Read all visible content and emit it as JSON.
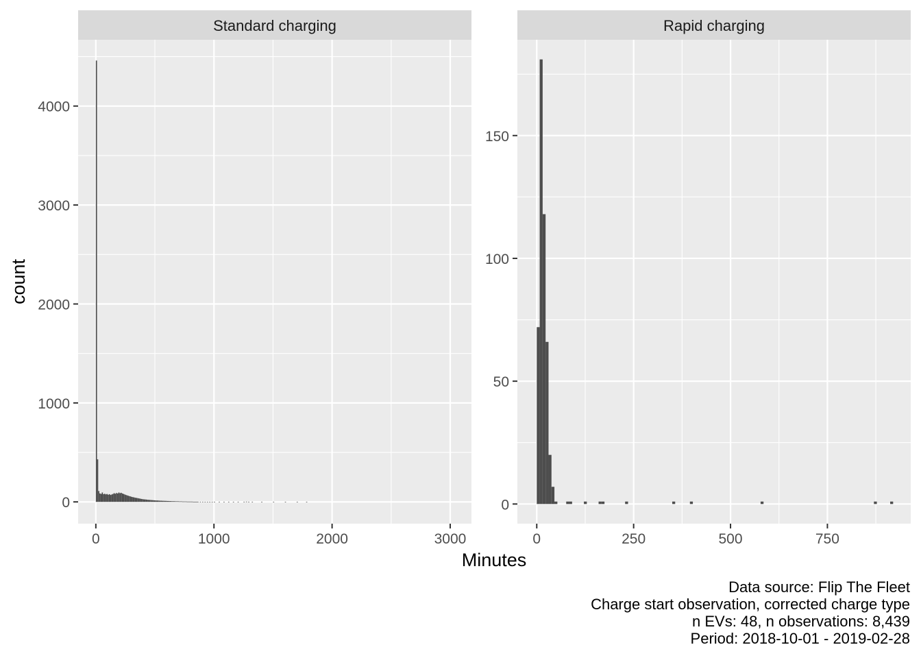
{
  "chart_data": {
    "type": "bar",
    "kind": "faceted histogram",
    "xlabel": "Minutes",
    "ylabel": "count",
    "grid": true,
    "caption": [
      "Data source: Flip The Fleet",
      "Charge start observation, corrected charge type",
      "n EVs: 48, n observations: 8,439",
      "Period: 2018-10-01 - 2019-02-28"
    ],
    "facets": [
      {
        "title": "Standard charging",
        "xlim": [
          -150,
          3180
        ],
        "ylim": [
          -220,
          4670
        ],
        "x_ticks": [
          0,
          1000,
          2000,
          3000
        ],
        "x_tick_labels": [
          "0",
          "1000",
          "2000",
          "3000"
        ],
        "y_ticks": [
          0,
          1000,
          2000,
          3000,
          4000
        ],
        "y_tick_labels": [
          "0",
          "1000",
          "2000",
          "3000",
          "4000"
        ],
        "bin_width": 10,
        "bins": [
          [
            0,
            4460
          ],
          [
            10,
            430
          ],
          [
            20,
            110
          ],
          [
            30,
            85
          ],
          [
            40,
            80
          ],
          [
            50,
            95
          ],
          [
            60,
            78
          ],
          [
            70,
            82
          ],
          [
            80,
            76
          ],
          [
            90,
            80
          ],
          [
            100,
            72
          ],
          [
            110,
            78
          ],
          [
            120,
            70
          ],
          [
            130,
            75
          ],
          [
            140,
            80
          ],
          [
            150,
            88
          ],
          [
            160,
            82
          ],
          [
            170,
            90
          ],
          [
            180,
            85
          ],
          [
            190,
            95
          ],
          [
            200,
            88
          ],
          [
            210,
            92
          ],
          [
            220,
            85
          ],
          [
            230,
            80
          ],
          [
            240,
            75
          ],
          [
            250,
            70
          ],
          [
            260,
            66
          ],
          [
            270,
            62
          ],
          [
            280,
            58
          ],
          [
            290,
            55
          ],
          [
            300,
            50
          ],
          [
            310,
            48
          ],
          [
            320,
            45
          ],
          [
            330,
            42
          ],
          [
            340,
            40
          ],
          [
            350,
            38
          ],
          [
            360,
            35
          ],
          [
            370,
            33
          ],
          [
            380,
            30
          ],
          [
            390,
            28
          ],
          [
            400,
            26
          ],
          [
            410,
            25
          ],
          [
            420,
            24
          ],
          [
            430,
            22
          ],
          [
            440,
            21
          ],
          [
            450,
            20
          ],
          [
            460,
            19
          ],
          [
            470,
            18
          ],
          [
            480,
            17
          ],
          [
            490,
            16
          ],
          [
            500,
            15
          ],
          [
            510,
            14
          ],
          [
            520,
            14
          ],
          [
            530,
            13
          ],
          [
            540,
            12
          ],
          [
            550,
            12
          ],
          [
            560,
            11
          ],
          [
            570,
            11
          ],
          [
            580,
            10
          ],
          [
            590,
            10
          ],
          [
            600,
            9
          ],
          [
            610,
            9
          ],
          [
            620,
            8
          ],
          [
            630,
            8
          ],
          [
            640,
            7
          ],
          [
            650,
            7
          ],
          [
            660,
            7
          ],
          [
            670,
            6
          ],
          [
            680,
            6
          ],
          [
            690,
            6
          ],
          [
            700,
            5
          ],
          [
            710,
            5
          ],
          [
            720,
            5
          ],
          [
            730,
            4
          ],
          [
            740,
            4
          ],
          [
            750,
            4
          ],
          [
            760,
            4
          ],
          [
            770,
            3
          ],
          [
            780,
            3
          ],
          [
            790,
            3
          ],
          [
            800,
            3
          ],
          [
            810,
            3
          ],
          [
            820,
            2
          ],
          [
            830,
            2
          ],
          [
            840,
            2
          ],
          [
            850,
            2
          ],
          [
            860,
            2
          ],
          [
            880,
            2
          ],
          [
            900,
            2
          ],
          [
            920,
            1
          ],
          [
            940,
            1
          ],
          [
            960,
            1
          ],
          [
            980,
            1
          ],
          [
            1000,
            1
          ],
          [
            1040,
            1
          ],
          [
            1080,
            1
          ],
          [
            1120,
            1
          ],
          [
            1160,
            1
          ],
          [
            1200,
            1
          ],
          [
            1250,
            2
          ],
          [
            1270,
            3
          ],
          [
            1290,
            2
          ],
          [
            1320,
            1
          ],
          [
            1400,
            1
          ],
          [
            1500,
            1
          ],
          [
            1600,
            1
          ],
          [
            1700,
            1
          ],
          [
            1780,
            1
          ]
        ]
      },
      {
        "title": "Rapid charging",
        "xlim": [
          -50,
          965
        ],
        "ylim": [
          -8,
          189
        ],
        "x_ticks": [
          0,
          250,
          500,
          750
        ],
        "x_tick_labels": [
          "0",
          "250",
          "500",
          "750"
        ],
        "y_ticks": [
          0,
          50,
          100,
          150
        ],
        "y_tick_labels": [
          "0",
          "50",
          "100",
          "150"
        ],
        "bin_width": 7.6,
        "bins": [
          [
            0,
            72
          ],
          [
            7.6,
            181
          ],
          [
            15.2,
            118
          ],
          [
            22.8,
            66
          ],
          [
            30.4,
            20
          ],
          [
            38,
            7
          ],
          [
            45.6,
            1
          ],
          [
            76,
            1
          ],
          [
            83.6,
            1
          ],
          [
            121.6,
            1
          ],
          [
            159.6,
            1
          ],
          [
            167.2,
            1
          ],
          [
            228,
            1
          ],
          [
            349.6,
            1
          ],
          [
            395.2,
            1
          ],
          [
            577.6,
            1
          ],
          [
            870,
            1
          ],
          [
            912,
            1
          ]
        ]
      }
    ]
  }
}
